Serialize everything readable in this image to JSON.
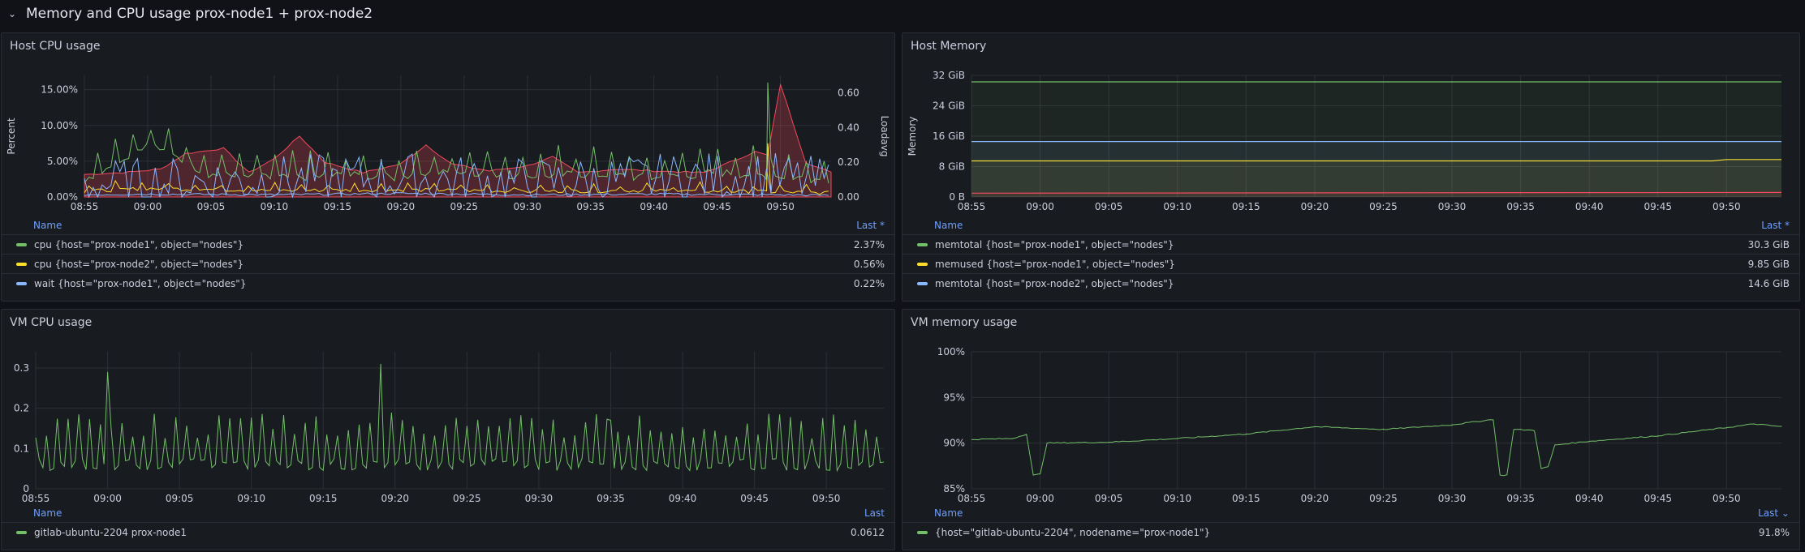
{
  "row": {
    "title": "Memory and CPU usage prox-node1 + prox-node2"
  },
  "colors": {
    "green": "#73bf69",
    "yellow": "#fade2a",
    "blue": "#8ab8ff",
    "red": "#f2495c"
  },
  "panels": {
    "host_cpu": {
      "title": "Host CPU usage",
      "legend_name_header": "Name",
      "legend_last_header": "Last *",
      "legend": [
        {
          "name": "cpu {host=\"prox-node1\", object=\"nodes\"}",
          "value": "2.37%",
          "color": "#73bf69"
        },
        {
          "name": "cpu {host=\"prox-node2\", object=\"nodes\"}",
          "value": "0.56%",
          "color": "#fade2a"
        },
        {
          "name": "wait {host=\"prox-node1\", object=\"nodes\"}",
          "value": "0.22%",
          "color": "#8ab8ff"
        }
      ]
    },
    "host_memory": {
      "title": "Host Memory",
      "legend_name_header": "Name",
      "legend_last_header": "Last *",
      "legend": [
        {
          "name": "memtotal {host=\"prox-node1\", object=\"nodes\"}",
          "value": "30.3 GiB",
          "color": "#73bf69"
        },
        {
          "name": "memused {host=\"prox-node1\", object=\"nodes\"}",
          "value": "9.85 GiB",
          "color": "#fade2a"
        },
        {
          "name": "memtotal {host=\"prox-node2\", object=\"nodes\"}",
          "value": "14.6 GiB",
          "color": "#8ab8ff"
        }
      ]
    },
    "vm_cpu": {
      "title": "VM CPU usage",
      "legend_name_header": "Name",
      "legend_last_header": "Last",
      "legend": [
        {
          "name": "gitlab-ubuntu-2204 prox-node1",
          "value": "0.0612",
          "color": "#73bf69"
        }
      ]
    },
    "vm_memory": {
      "title": "VM memory usage",
      "legend_name_header": "Name",
      "legend_last_header": "Last ⌄",
      "legend": [
        {
          "name": "{host=\"gitlab-ubuntu-2204\", nodename=\"prox-node1\"}",
          "value": "91.8%",
          "color": "#73bf69"
        }
      ]
    }
  },
  "chart_data": [
    {
      "id": "host_cpu",
      "type": "line",
      "title": "Host CPU usage",
      "x_ticks": [
        "08:55",
        "09:00",
        "09:05",
        "09:10",
        "09:15",
        "09:20",
        "09:25",
        "09:30",
        "09:35",
        "09:40",
        "09:45",
        "09:50"
      ],
      "xlim": [
        "08:55",
        "09:54"
      ],
      "ylabel_left": "Percent",
      "ylabel_right": "Loadavg",
      "y_ticks_left": [
        "0.00%",
        "5.00%",
        "10.00%",
        "15.00%"
      ],
      "ylim_left": [
        0,
        17
      ],
      "y_ticks_right": [
        "0.00",
        "0.20",
        "0.40",
        "0.60"
      ],
      "ylim_right": [
        0,
        0.7
      ],
      "grid": true,
      "series": [
        {
          "name": "cpu {host=\"prox-node1\", object=\"nodes\"}",
          "color": "#73bf69",
          "axis": "left",
          "points": [
            [
              "08:55",
              2.4
            ],
            [
              "09:00",
              7.5
            ],
            [
              "09:05",
              3.1
            ],
            [
              "09:10",
              2.6
            ],
            [
              "09:15",
              3.0
            ],
            [
              "09:20",
              2.8
            ],
            [
              "09:25",
              3.6
            ],
            [
              "09:30",
              2.9
            ],
            [
              "09:35",
              3.2
            ],
            [
              "09:40",
              2.6
            ],
            [
              "09:45",
              3.4
            ],
            [
              "09:49",
              16.0
            ],
            [
              "09:50",
              2.9
            ],
            [
              "09:54",
              2.37
            ]
          ]
        },
        {
          "name": "cpu {host=\"prox-node2\", object=\"nodes\"}",
          "color": "#fade2a",
          "axis": "left",
          "points": [
            [
              "08:55",
              0.8
            ],
            [
              "09:00",
              1.2
            ],
            [
              "09:10",
              0.9
            ],
            [
              "09:20",
              1.0
            ],
            [
              "09:30",
              0.8
            ],
            [
              "09:40",
              0.9
            ],
            [
              "09:49",
              7.5
            ],
            [
              "09:50",
              0.7
            ],
            [
              "09:54",
              0.56
            ]
          ]
        },
        {
          "name": "wait {host=\"prox-node1\", object=\"nodes\"}",
          "color": "#8ab8ff",
          "axis": "left",
          "points": [
            [
              "08:55",
              0.3
            ],
            [
              "09:00",
              0.4
            ],
            [
              "09:10",
              0.3
            ],
            [
              "09:20",
              0.5
            ],
            [
              "09:30",
              0.3
            ],
            [
              "09:40",
              0.4
            ],
            [
              "09:50",
              0.3
            ],
            [
              "09:54",
              0.22
            ]
          ]
        },
        {
          "color": "#f2495c",
          "axis": "right",
          "fill": true,
          "points": [
            [
              "08:55",
              0.13
            ],
            [
              "08:58",
              0.14
            ],
            [
              "09:01",
              0.16
            ],
            [
              "09:03",
              0.25
            ],
            [
              "09:06",
              0.28
            ],
            [
              "09:08",
              0.14
            ],
            [
              "09:10",
              0.22
            ],
            [
              "09:12",
              0.35
            ],
            [
              "09:14",
              0.2
            ],
            [
              "09:17",
              0.14
            ],
            [
              "09:20",
              0.19
            ],
            [
              "09:22",
              0.3
            ],
            [
              "09:24",
              0.19
            ],
            [
              "09:27",
              0.15
            ],
            [
              "09:30",
              0.18
            ],
            [
              "09:32",
              0.23
            ],
            [
              "09:34",
              0.14
            ],
            [
              "09:37",
              0.16
            ],
            [
              "09:40",
              0.15
            ],
            [
              "09:44",
              0.14
            ],
            [
              "09:46",
              0.2
            ],
            [
              "09:48",
              0.26
            ],
            [
              "09:49",
              0.24
            ],
            [
              "09:50",
              0.65
            ],
            [
              "09:52",
              0.2
            ],
            [
              "09:54",
              0.14
            ]
          ]
        },
        {
          "color": "#8ab8ff",
          "axis": "right",
          "points": [
            [
              "08:55",
              0.07
            ],
            [
              "09:05",
              0.09
            ],
            [
              "09:15",
              0.1
            ],
            [
              "09:20",
              0.11
            ],
            [
              "09:30",
              0.08
            ],
            [
              "09:40",
              0.1
            ],
            [
              "09:48",
              0.12
            ],
            [
              "09:52",
              0.09
            ],
            [
              "09:54",
              0.08
            ]
          ]
        }
      ]
    },
    {
      "id": "host_memory",
      "type": "area",
      "title": "Host Memory",
      "x_ticks": [
        "08:55",
        "09:00",
        "09:05",
        "09:10",
        "09:15",
        "09:20",
        "09:25",
        "09:30",
        "09:35",
        "09:40",
        "09:45",
        "09:50"
      ],
      "xlim": [
        "08:55",
        "09:54"
      ],
      "ylabel": "Memory",
      "y_ticks": [
        "0 B",
        "8 GiB",
        "16 GiB",
        "24 GiB",
        "32 GiB"
      ],
      "ylim_gib": [
        0,
        32
      ],
      "grid": true,
      "series": [
        {
          "name": "memtotal {host=\"prox-node1\", object=\"nodes\"}",
          "color": "#73bf69",
          "points": [
            [
              "08:55",
              30.3
            ],
            [
              "09:54",
              30.3
            ]
          ]
        },
        {
          "name": "memused {host=\"prox-node1\", object=\"nodes\"}",
          "color": "#fade2a",
          "points": [
            [
              "08:55",
              9.5
            ],
            [
              "09:49",
              9.5
            ],
            [
              "09:50",
              9.85
            ],
            [
              "09:54",
              9.85
            ]
          ]
        },
        {
          "name": "memtotal {host=\"prox-node2\", object=\"nodes\"}",
          "color": "#8ab8ff",
          "points": [
            [
              "08:55",
              14.6
            ],
            [
              "09:54",
              14.6
            ]
          ]
        },
        {
          "color": "#f2495c",
          "points": [
            [
              "08:55",
              1.0
            ],
            [
              "09:54",
              1.2
            ]
          ]
        }
      ]
    },
    {
      "id": "vm_cpu",
      "type": "line",
      "title": "VM CPU usage",
      "x_ticks": [
        "08:55",
        "09:00",
        "09:05",
        "09:10",
        "09:15",
        "09:20",
        "09:25",
        "09:30",
        "09:35",
        "09:40",
        "09:45",
        "09:50"
      ],
      "xlim": [
        "08:55",
        "09:54"
      ],
      "y_ticks": [
        "0",
        "0.1",
        "0.2",
        "0.3"
      ],
      "ylim": [
        0,
        0.34
      ],
      "grid": true,
      "series": [
        {
          "name": "gitlab-ubuntu-2204 prox-node1",
          "color": "#73bf69",
          "baseline": 0.06,
          "spike_interval_min": 0.75,
          "spike_height": 0.13,
          "points": [
            [
              "08:55",
              0.06
            ],
            [
              "09:00",
              0.29
            ],
            [
              "09:19",
              0.31
            ],
            [
              "09:35",
              0.17
            ],
            [
              "09:54",
              0.0612
            ]
          ]
        }
      ]
    },
    {
      "id": "vm_memory",
      "type": "line",
      "title": "VM memory usage",
      "x_ticks": [
        "08:55",
        "09:00",
        "09:05",
        "09:10",
        "09:15",
        "09:20",
        "09:25",
        "09:30",
        "09:35",
        "09:40",
        "09:45",
        "09:50"
      ],
      "xlim": [
        "08:55",
        "09:54"
      ],
      "y_ticks": [
        "85%",
        "90%",
        "95%",
        "100%"
      ],
      "ylim": [
        85,
        100
      ],
      "grid": true,
      "series": [
        {
          "name": "{host=\"gitlab-ubuntu-2204\", nodename=\"prox-node1\"}",
          "color": "#73bf69",
          "points": [
            [
              "08:55",
              90.4
            ],
            [
              "08:58",
              90.5
            ],
            [
              "08:59",
              91.0
            ],
            [
              "08:59.5",
              86.5
            ],
            [
              "09:00",
              86.6
            ],
            [
              "09:00.5",
              90.0
            ],
            [
              "09:05",
              90.1
            ],
            [
              "09:10",
              90.5
            ],
            [
              "09:15",
              91.0
            ],
            [
              "09:20",
              91.8
            ],
            [
              "09:25",
              91.5
            ],
            [
              "09:30",
              92.0
            ],
            [
              "09:33",
              92.6
            ],
            [
              "09:33.5",
              86.5
            ],
            [
              "09:34",
              86.5
            ],
            [
              "09:34.5",
              91.5
            ],
            [
              "09:36",
              91.4
            ],
            [
              "09:36.5",
              87.2
            ],
            [
              "09:37",
              87.4
            ],
            [
              "09:37.5",
              89.8
            ],
            [
              "09:40",
              90.2
            ],
            [
              "09:45",
              90.8
            ],
            [
              "09:50",
              91.7
            ],
            [
              "09:52",
              92.1
            ],
            [
              "09:54",
              91.8
            ]
          ]
        }
      ]
    }
  ]
}
